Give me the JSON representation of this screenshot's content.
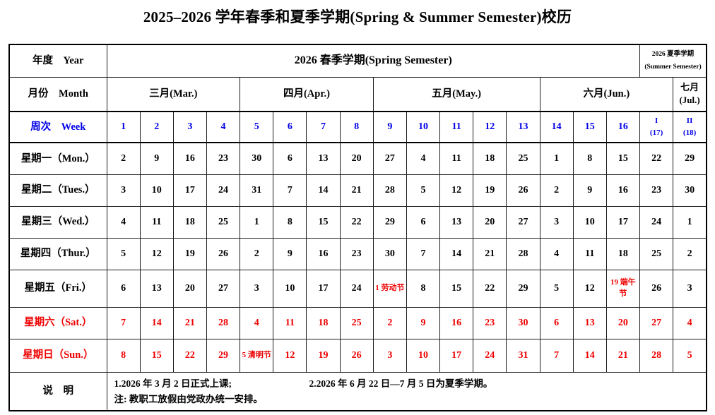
{
  "page": {
    "title": "2025–2026 学年春季和夏季学期(Spring & Summer Semester)校历"
  },
  "calendar": {
    "year_row": {
      "label": "年度　Year",
      "spring": "2026 春季学期(Spring Semester)",
      "summer_line1": "2026 夏季学期",
      "summer_line2": "(Summer Semester)"
    },
    "month_row": {
      "label": "月份　Month",
      "months": [
        {
          "label": "三月(Mar.)",
          "span": 4
        },
        {
          "label": "四月(Apr.)",
          "span": 4
        },
        {
          "label": "五月(May.)",
          "span": 5
        },
        {
          "label": "六月(Jun.)",
          "span": 4
        },
        {
          "label_line1": "七月",
          "label_line2": "(Jul.)",
          "span": 1
        }
      ]
    },
    "week_row": {
      "label": "周次　Week",
      "cells": [
        "1",
        "2",
        "3",
        "4",
        "5",
        "6",
        "7",
        "8",
        "9",
        "10",
        "11",
        "12",
        "13",
        "14",
        "15",
        "16",
        {
          "line1": "I",
          "line2": "(17)"
        },
        {
          "line1": "II",
          "line2": "(18)"
        }
      ]
    },
    "day_rows": [
      {
        "label": "星期一（Mon.）",
        "color": "black",
        "cells": [
          "2",
          "9",
          "16",
          "23",
          "30",
          "6",
          "13",
          "20",
          "27",
          "4",
          "11",
          "18",
          "25",
          "1",
          "8",
          "15",
          "22",
          "29"
        ]
      },
      {
        "label": "星期二（Tues.）",
        "color": "black",
        "cells": [
          "3",
          "10",
          "17",
          "24",
          "31",
          "7",
          "14",
          "21",
          "28",
          "5",
          "12",
          "19",
          "26",
          "2",
          "9",
          "16",
          "23",
          "30"
        ]
      },
      {
        "label": "星期三（Wed.）",
        "color": "black",
        "cells": [
          "4",
          "11",
          "18",
          "25",
          "1",
          "8",
          "15",
          "22",
          "29",
          "6",
          "13",
          "20",
          "27",
          "3",
          "10",
          "17",
          "24",
          "1"
        ]
      },
      {
        "label": "星期四（Thur.）",
        "color": "black",
        "cells": [
          "5",
          "12",
          "19",
          "26",
          "2",
          "9",
          "16",
          "23",
          "30",
          "7",
          "14",
          "21",
          "28",
          "4",
          "11",
          "18",
          "25",
          "2"
        ]
      },
      {
        "label": "星期五（Fri.）",
        "color": "black",
        "cells": [
          "6",
          "13",
          "20",
          "27",
          "3",
          "10",
          "17",
          "24",
          {
            "day": "1",
            "holiday": "劳动节"
          },
          "8",
          "15",
          "22",
          "29",
          "5",
          "12",
          {
            "day": "19",
            "holiday": "端午节"
          },
          "26",
          "3"
        ]
      },
      {
        "label": "星期六（Sat.）",
        "color": "red",
        "cells": [
          "7",
          "14",
          "21",
          "28",
          "4",
          "11",
          "18",
          "25",
          "2",
          "9",
          "16",
          "23",
          "30",
          "6",
          "13",
          "20",
          "27",
          "4"
        ]
      },
      {
        "label": "星期日（Sun.）",
        "color": "red",
        "cells": [
          "8",
          "15",
          "22",
          "29",
          {
            "day": "5",
            "holiday": "清明节"
          },
          "12",
          "19",
          "26",
          "3",
          "10",
          "17",
          "24",
          "31",
          "7",
          "14",
          "21",
          "28",
          "5"
        ]
      }
    ],
    "notes_row": {
      "label": "说　明",
      "note1": "1.2026 年 3 月 2 日正式上课;",
      "note2": "2.2026 年 6 月 22 日—7 月 5 日为夏季学期。",
      "note3": "注: 教职工放假由党政办统一安排。"
    },
    "colors": {
      "week_blue": "#0000e8",
      "weekend_red": "#ee0000"
    }
  }
}
